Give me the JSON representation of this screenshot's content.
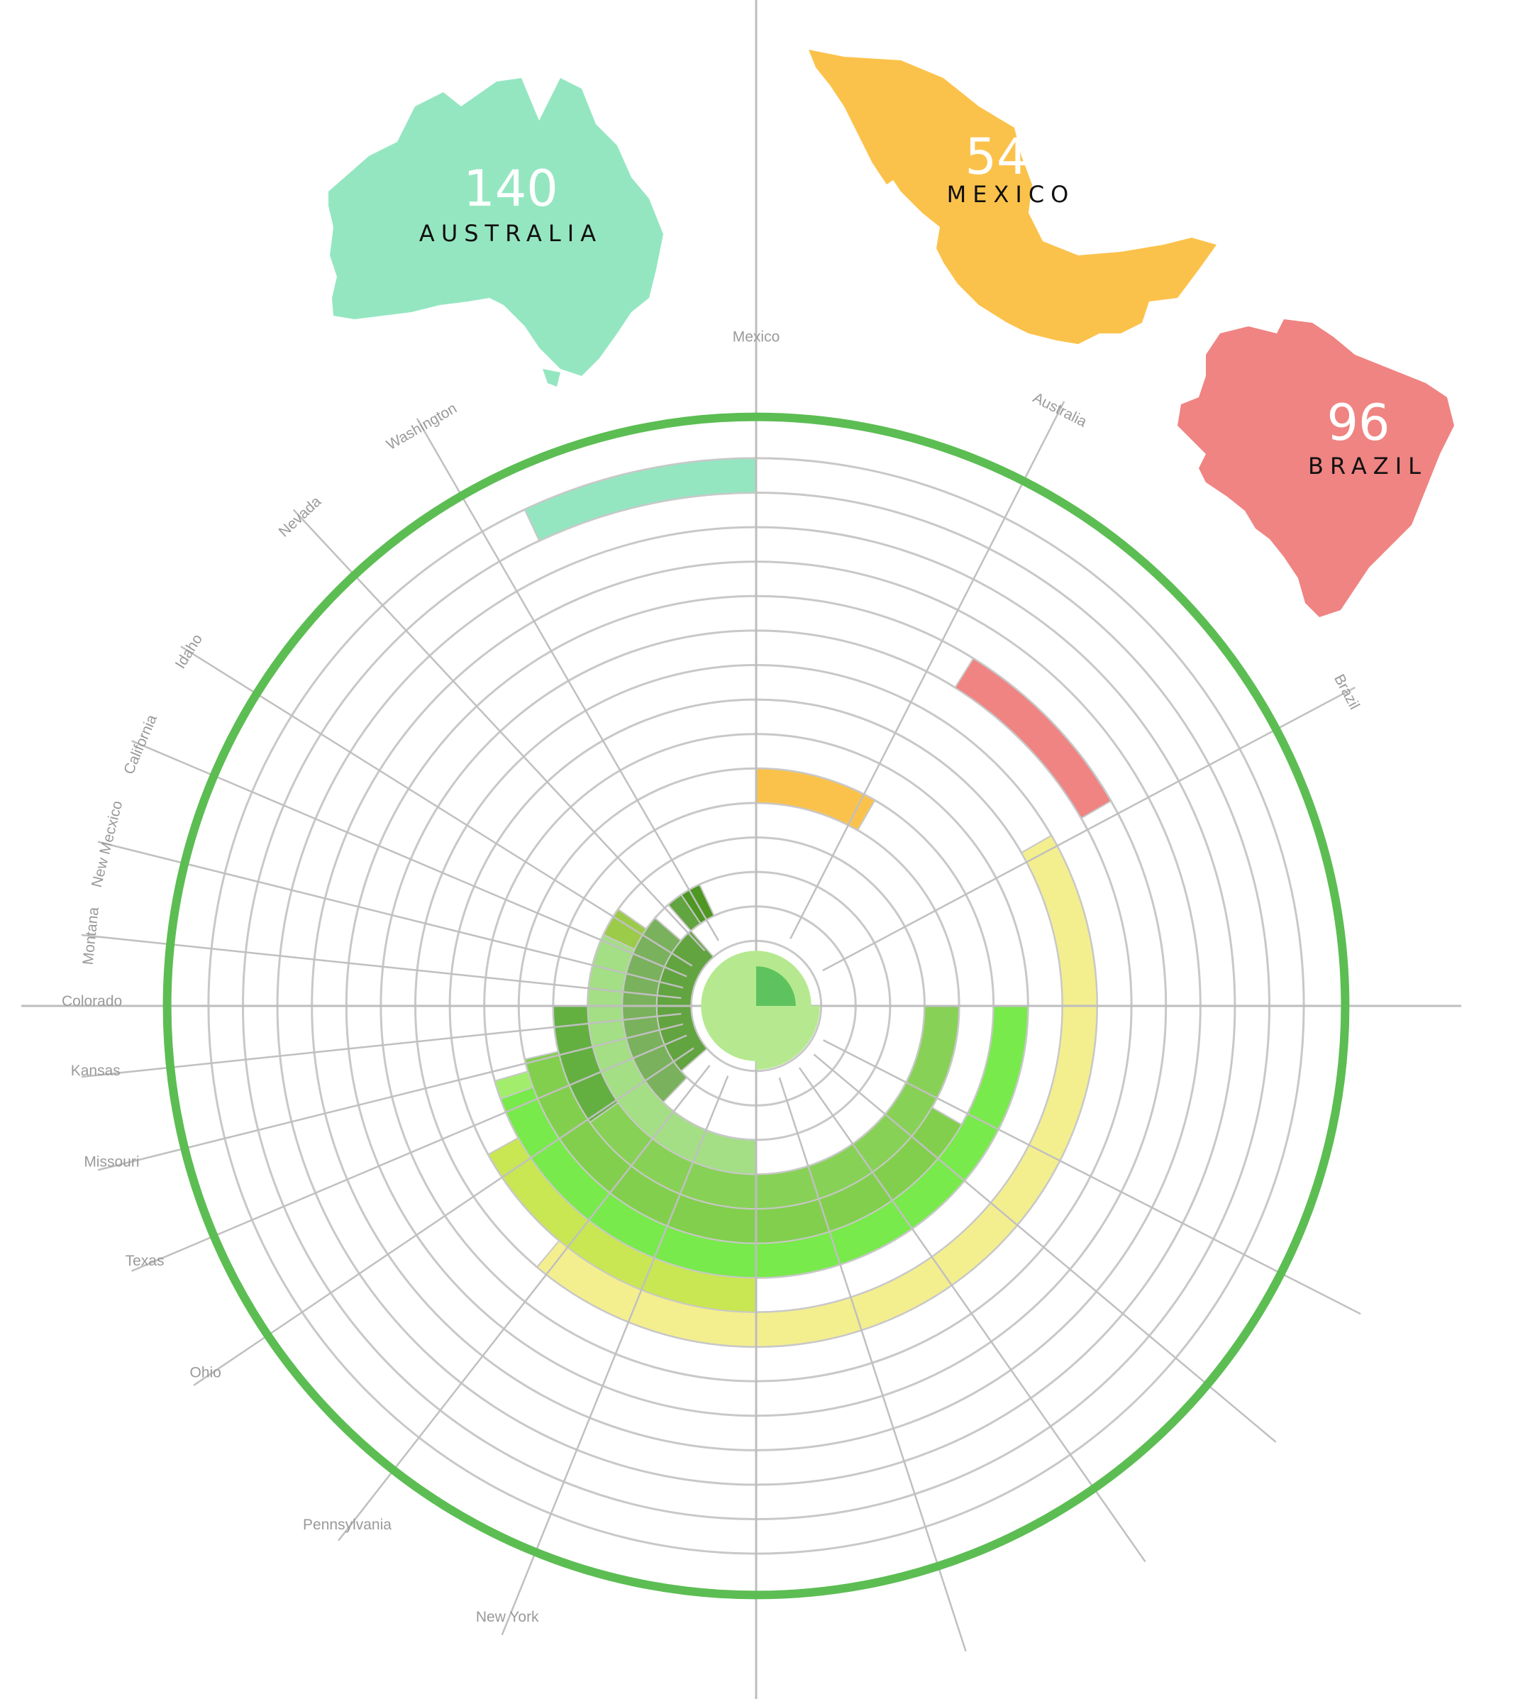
{
  "chart_data": {
    "type": "radial-bar",
    "unit_per_ring": 10,
    "max_value": 140,
    "countries": [
      {
        "name": "AUSTRALIA",
        "value": 140,
        "color": "#94e6c1",
        "icon": "australia-map-icon"
      },
      {
        "name": "MEXICO",
        "value": 54,
        "color": "#fbc24b",
        "icon": "mexico-map-icon"
      },
      {
        "name": "BRAZIL",
        "value": 96,
        "color": "#ef8482",
        "icon": "brazil-map-icon"
      }
    ],
    "spoke_labels": [
      "Mexico",
      "Australia",
      "Brazil",
      "Washington",
      "Nevada",
      "Idaho",
      "California",
      "New Mecxico",
      "Montana",
      "Colorado",
      "Kansas",
      "Missouri",
      "Texas",
      "Ohio",
      "Pennsylvania",
      "New York"
    ],
    "bars": [
      {
        "label": "Australia",
        "value": 140,
        "start_deg": 0,
        "end_deg": -25,
        "color": "#94e6c1"
      },
      {
        "label": "Mexico",
        "value": 54,
        "start_deg": 0,
        "end_deg": 30,
        "color": "#fbc24b"
      },
      {
        "label": "Brazil",
        "value": 96,
        "start_deg": 32,
        "end_deg": 60,
        "color": "#ef8482"
      },
      {
        "label": "Washington",
        "value": 18,
        "start_deg": -25,
        "end_deg": -34,
        "color": "#4d9722"
      },
      {
        "label": "Nevada",
        "value": 18,
        "start_deg": -34,
        "end_deg": -41,
        "color": "#62a43f"
      },
      {
        "label": "Idaho",
        "value": 14,
        "start_deg": -41,
        "end_deg": -131,
        "color": "#62a43f"
      },
      {
        "label": "California",
        "value": 20,
        "start_deg": -49,
        "end_deg": -136,
        "color": "#7ab15c"
      },
      {
        "label": "New Mecxico",
        "value": 26,
        "start_deg": -55,
        "end_deg": -142,
        "color": "#9ccb4a"
      },
      {
        "label": "Montana",
        "value": 32,
        "start_deg": -65,
        "end_deg": -180,
        "color": "#a4de85"
      },
      {
        "label": "Colorado",
        "value": 38,
        "start_deg": 90,
        "end_deg": 270,
        "color": "#63b041"
      },
      {
        "label": "Kansas",
        "value": 44,
        "start_deg": 90,
        "end_deg": 235,
        "color": "#88d157"
      },
      {
        "label": "Missouri",
        "value": 50,
        "start_deg": 120,
        "end_deg": 257,
        "color": "#82cf4e"
      },
      {
        "label": "Texas",
        "value": 56,
        "start_deg": 123,
        "end_deg": 254,
        "color": "#a2ee6c"
      },
      {
        "label": "Ohio",
        "value": 62,
        "start_deg": 90,
        "end_deg": 250,
        "color": "#78ea4b"
      },
      {
        "label": "Pennsylvania",
        "value": 68,
        "start_deg": 180,
        "end_deg": 241,
        "color": "#c9e653"
      },
      {
        "label": "New York",
        "value": 80,
        "start_deg": 60,
        "end_deg": 220,
        "color": "#f4ef8e"
      }
    ],
    "center_value": 10,
    "title": "",
    "legend": "none"
  }
}
